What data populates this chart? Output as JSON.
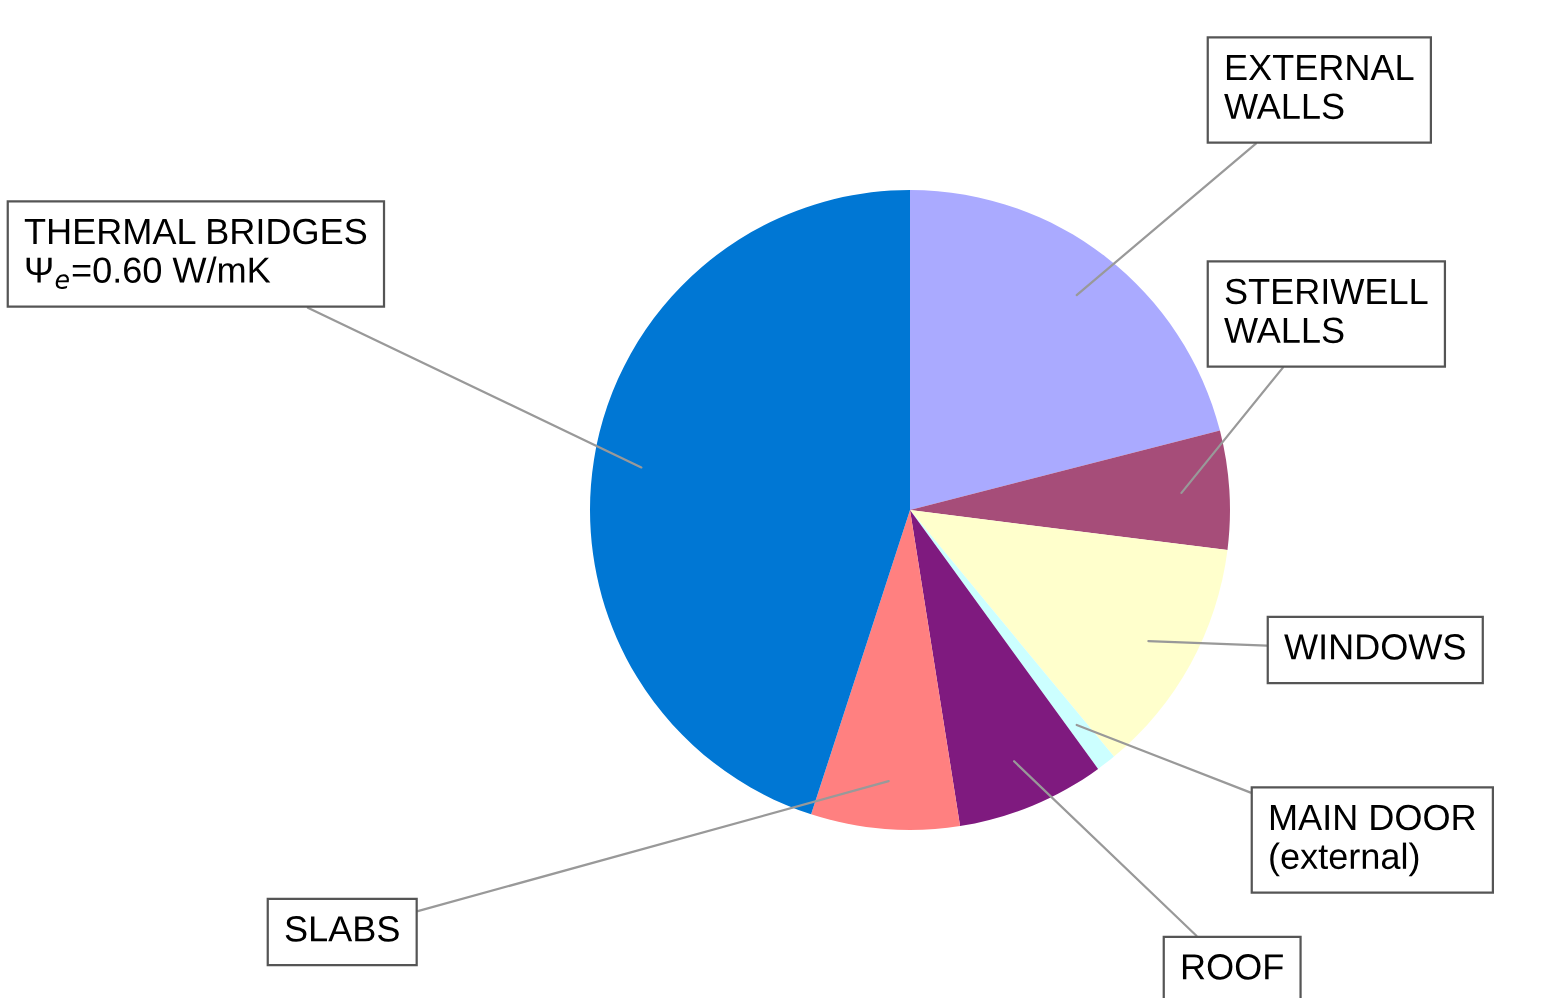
{
  "chart_data": {
    "type": "pie",
    "categories": [
      "EXTERNAL\nWALLS",
      "STERIWELL\nWALLS",
      "WINDOWS",
      "MAIN DOOR\n(external)",
      "ROOF",
      "SLABS",
      "THERMAL BRIDGES\nΨ$_{e}$=0.60 W/mK"
    ],
    "values": [
      21,
      6,
      12,
      1,
      7.5,
      7.5,
      45
    ],
    "colors": [
      "#aaaaff",
      "#a64d79",
      "#ffffcc",
      "#ccffff",
      "#7f1a7f",
      "#ff8080",
      "#0077d4"
    ],
    "legend": false
  }
}
